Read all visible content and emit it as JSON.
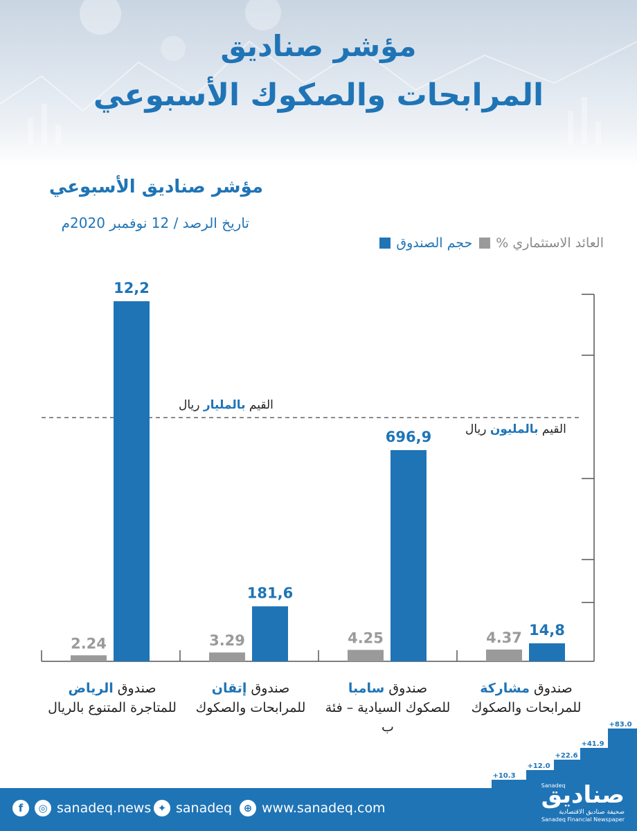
{
  "header": {
    "title_line1": "مؤشر صناديق",
    "title_line2": "المرابحات والصكوك الأسبوعي"
  },
  "subheader": {
    "title": "مؤشر صناديق الأسبوعي",
    "date": "تاريخ الرصد / 12 نوفمبر 2020م"
  },
  "legend": {
    "size_label": "حجم الصندوق",
    "return_label": "العائد الاستثماري %",
    "size_color": "#1f74b6",
    "return_color": "#9a9a9a"
  },
  "notes": {
    "billion_prefix": "القيم",
    "billion_kw": "بالمليار",
    "billion_suffix": "ريال",
    "million_prefix": "القيم",
    "million_kw": "بالمليون",
    "million_suffix": "ريال"
  },
  "chart_data": {
    "type": "bar",
    "categories": [
      {
        "prefix": "صندوق",
        "name": "الرياض",
        "line2": "للمتاجرة المتنوع بالريال"
      },
      {
        "prefix": "صندوق",
        "name": "إتقان",
        "line2": "للمرابحات والصكوك"
      },
      {
        "prefix": "صندوق",
        "name": "سامبا",
        "line2": "للصكوك السيادية – فئة ب"
      },
      {
        "prefix": "صندوق",
        "name": "مشاركة",
        "line2": "للمرابحات والصكوك"
      }
    ],
    "series": [
      {
        "name": "العائد الاستثماري %",
        "values": [
          2.24,
          3.29,
          4.25,
          4.37
        ],
        "labels": [
          "2.24",
          "3.29",
          "4.25",
          "4.37"
        ],
        "color": "#9a9a9a"
      },
      {
        "name": "حجم الصندوق",
        "values": [
          12.2,
          181.6,
          696.9,
          14.8
        ],
        "labels": [
          "12,2",
          "181,6",
          "696,9",
          "14,8"
        ],
        "units": [
          "مليار ريال",
          "مليون ريال",
          "مليون ريال",
          "مليون ريال"
        ],
        "color": "#1f74b6"
      }
    ],
    "grid": false
  },
  "stairs": {
    "values": [
      "+10.3",
      "+12.0",
      "+22.6",
      "+41.9",
      "+83.0"
    ]
  },
  "footer": {
    "news": "sanadeq.news",
    "handle": "sanadeq",
    "website": "www.sanadeq.com",
    "logo_ar": "صناديق",
    "logo_tag": "Sanadeq",
    "logo_sub_ar": "صحيفة صناديق الاقتصادية",
    "logo_sub_en": "Sanadeq Financial Newspaper"
  }
}
